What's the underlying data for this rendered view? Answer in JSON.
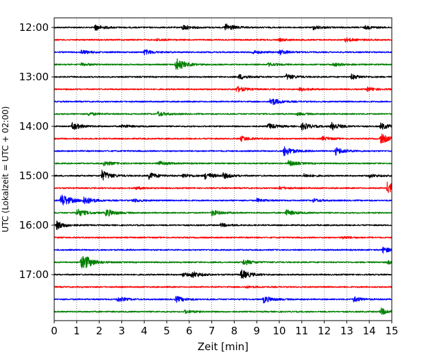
{
  "chart_data": {
    "type": "line",
    "chart_kind": "helicorder seismogram",
    "xlabel": "Zeit  [min]",
    "ylabel": "UTC (Lokalzeit = UTC + 02:00)",
    "xlim": [
      0,
      15
    ],
    "xticks": [
      0,
      1,
      2,
      3,
      4,
      5,
      6,
      7,
      8,
      9,
      10,
      11,
      12,
      13,
      14,
      15
    ],
    "x_grid": "dotted vertical lines at each minute",
    "y_tick_labels": [
      "12:00",
      "13:00",
      "14:00",
      "15:00",
      "16:00",
      "17:00"
    ],
    "trace_interval_minutes": 15,
    "trace_colors": [
      "#000000",
      "#ff0000",
      "#0000ff",
      "#008000"
    ],
    "traces": [
      {
        "start": "12:00",
        "events": [
          [
            1.8,
            0.35
          ],
          [
            5.7,
            0.3
          ],
          [
            7.6,
            0.45
          ],
          [
            11.5,
            0.25
          ],
          [
            13.8,
            0.2
          ]
        ]
      },
      {
        "start": "12:15",
        "events": [
          [
            4.5,
            0.15
          ],
          [
            10.0,
            0.15
          ],
          [
            12.9,
            0.25
          ]
        ]
      },
      {
        "start": "12:30",
        "events": [
          [
            1.2,
            0.25
          ],
          [
            4.0,
            0.3
          ],
          [
            8.8,
            0.2
          ],
          [
            10.0,
            0.3
          ]
        ]
      },
      {
        "start": "12:45",
        "events": [
          [
            1.2,
            0.15
          ],
          [
            5.4,
            0.8
          ],
          [
            9.5,
            0.2
          ],
          [
            12.4,
            0.2
          ]
        ]
      },
      {
        "start": "13:00",
        "events": [
          [
            8.2,
            0.3
          ],
          [
            10.3,
            0.35
          ],
          [
            13.2,
            0.3
          ]
        ]
      },
      {
        "start": "13:15",
        "events": [
          [
            8.1,
            0.35
          ],
          [
            10.9,
            0.2
          ],
          [
            13.9,
            0.25
          ]
        ]
      },
      {
        "start": "13:30",
        "events": [
          [
            9.6,
            0.5
          ]
        ]
      },
      {
        "start": "13:45",
        "events": [
          [
            1.5,
            0.2
          ],
          [
            4.6,
            0.3
          ],
          [
            10.8,
            0.15
          ]
        ]
      },
      {
        "start": "14:00",
        "events": [
          [
            0.8,
            0.45
          ],
          [
            3.0,
            0.2
          ],
          [
            9.5,
            0.35
          ],
          [
            11.0,
            0.45
          ],
          [
            12.3,
            0.5
          ],
          [
            14.5,
            0.4
          ]
        ]
      },
      {
        "start": "14:15",
        "events": [
          [
            8.3,
            0.3
          ],
          [
            11.9,
            0.25
          ],
          [
            14.5,
            0.6
          ]
        ]
      },
      {
        "start": "14:30",
        "events": [
          [
            10.2,
            0.6
          ],
          [
            12.5,
            0.45
          ]
        ]
      },
      {
        "start": "14:45",
        "events": [
          [
            2.2,
            0.3
          ],
          [
            4.6,
            0.3
          ],
          [
            10.4,
            0.35
          ]
        ]
      },
      {
        "start": "15:00",
        "events": [
          [
            2.1,
            0.65
          ],
          [
            4.2,
            0.4
          ],
          [
            5.7,
            0.25
          ],
          [
            6.7,
            0.4
          ],
          [
            7.5,
            0.3
          ],
          [
            11.1,
            0.2
          ],
          [
            14.0,
            0.2
          ]
        ]
      },
      {
        "start": "15:15",
        "events": [
          [
            3.6,
            0.15
          ],
          [
            10.0,
            0.15
          ],
          [
            14.8,
            0.8
          ]
        ]
      },
      {
        "start": "15:30",
        "events": [
          [
            0.3,
            0.9
          ],
          [
            1.3,
            0.5
          ],
          [
            3.5,
            0.2
          ],
          [
            9.0,
            0.2
          ],
          [
            11.5,
            0.2
          ]
        ]
      },
      {
        "start": "15:45",
        "events": [
          [
            1.0,
            0.5
          ],
          [
            2.3,
            0.45
          ],
          [
            7.0,
            0.35
          ],
          [
            10.3,
            0.35
          ]
        ]
      },
      {
        "start": "16:00",
        "events": [
          [
            0.1,
            0.5
          ],
          [
            7.4,
            0.2
          ]
        ]
      },
      {
        "start": "16:15",
        "events": [
          [
            12.8,
            0.15
          ]
        ]
      },
      {
        "start": "16:30",
        "events": [
          [
            14.6,
            0.35
          ]
        ]
      },
      {
        "start": "16:45",
        "events": [
          [
            1.2,
            1.3
          ],
          [
            8.4,
            0.35
          ],
          [
            14.8,
            0.2
          ]
        ]
      },
      {
        "start": "17:00",
        "events": [
          [
            6.1,
            0.35
          ],
          [
            8.3,
            0.6
          ],
          [
            5.7,
            0.2
          ]
        ]
      },
      {
        "start": "17:15",
        "events": [
          [
            8.5,
            0.1
          ]
        ]
      },
      {
        "start": "17:30",
        "events": [
          [
            2.8,
            0.3
          ],
          [
            5.4,
            0.35
          ],
          [
            9.3,
            0.4
          ],
          [
            13.3,
            0.3
          ]
        ]
      },
      {
        "start": "17:45",
        "events": [
          [
            5.8,
            0.2
          ],
          [
            14.5,
            0.4
          ]
        ]
      }
    ]
  }
}
